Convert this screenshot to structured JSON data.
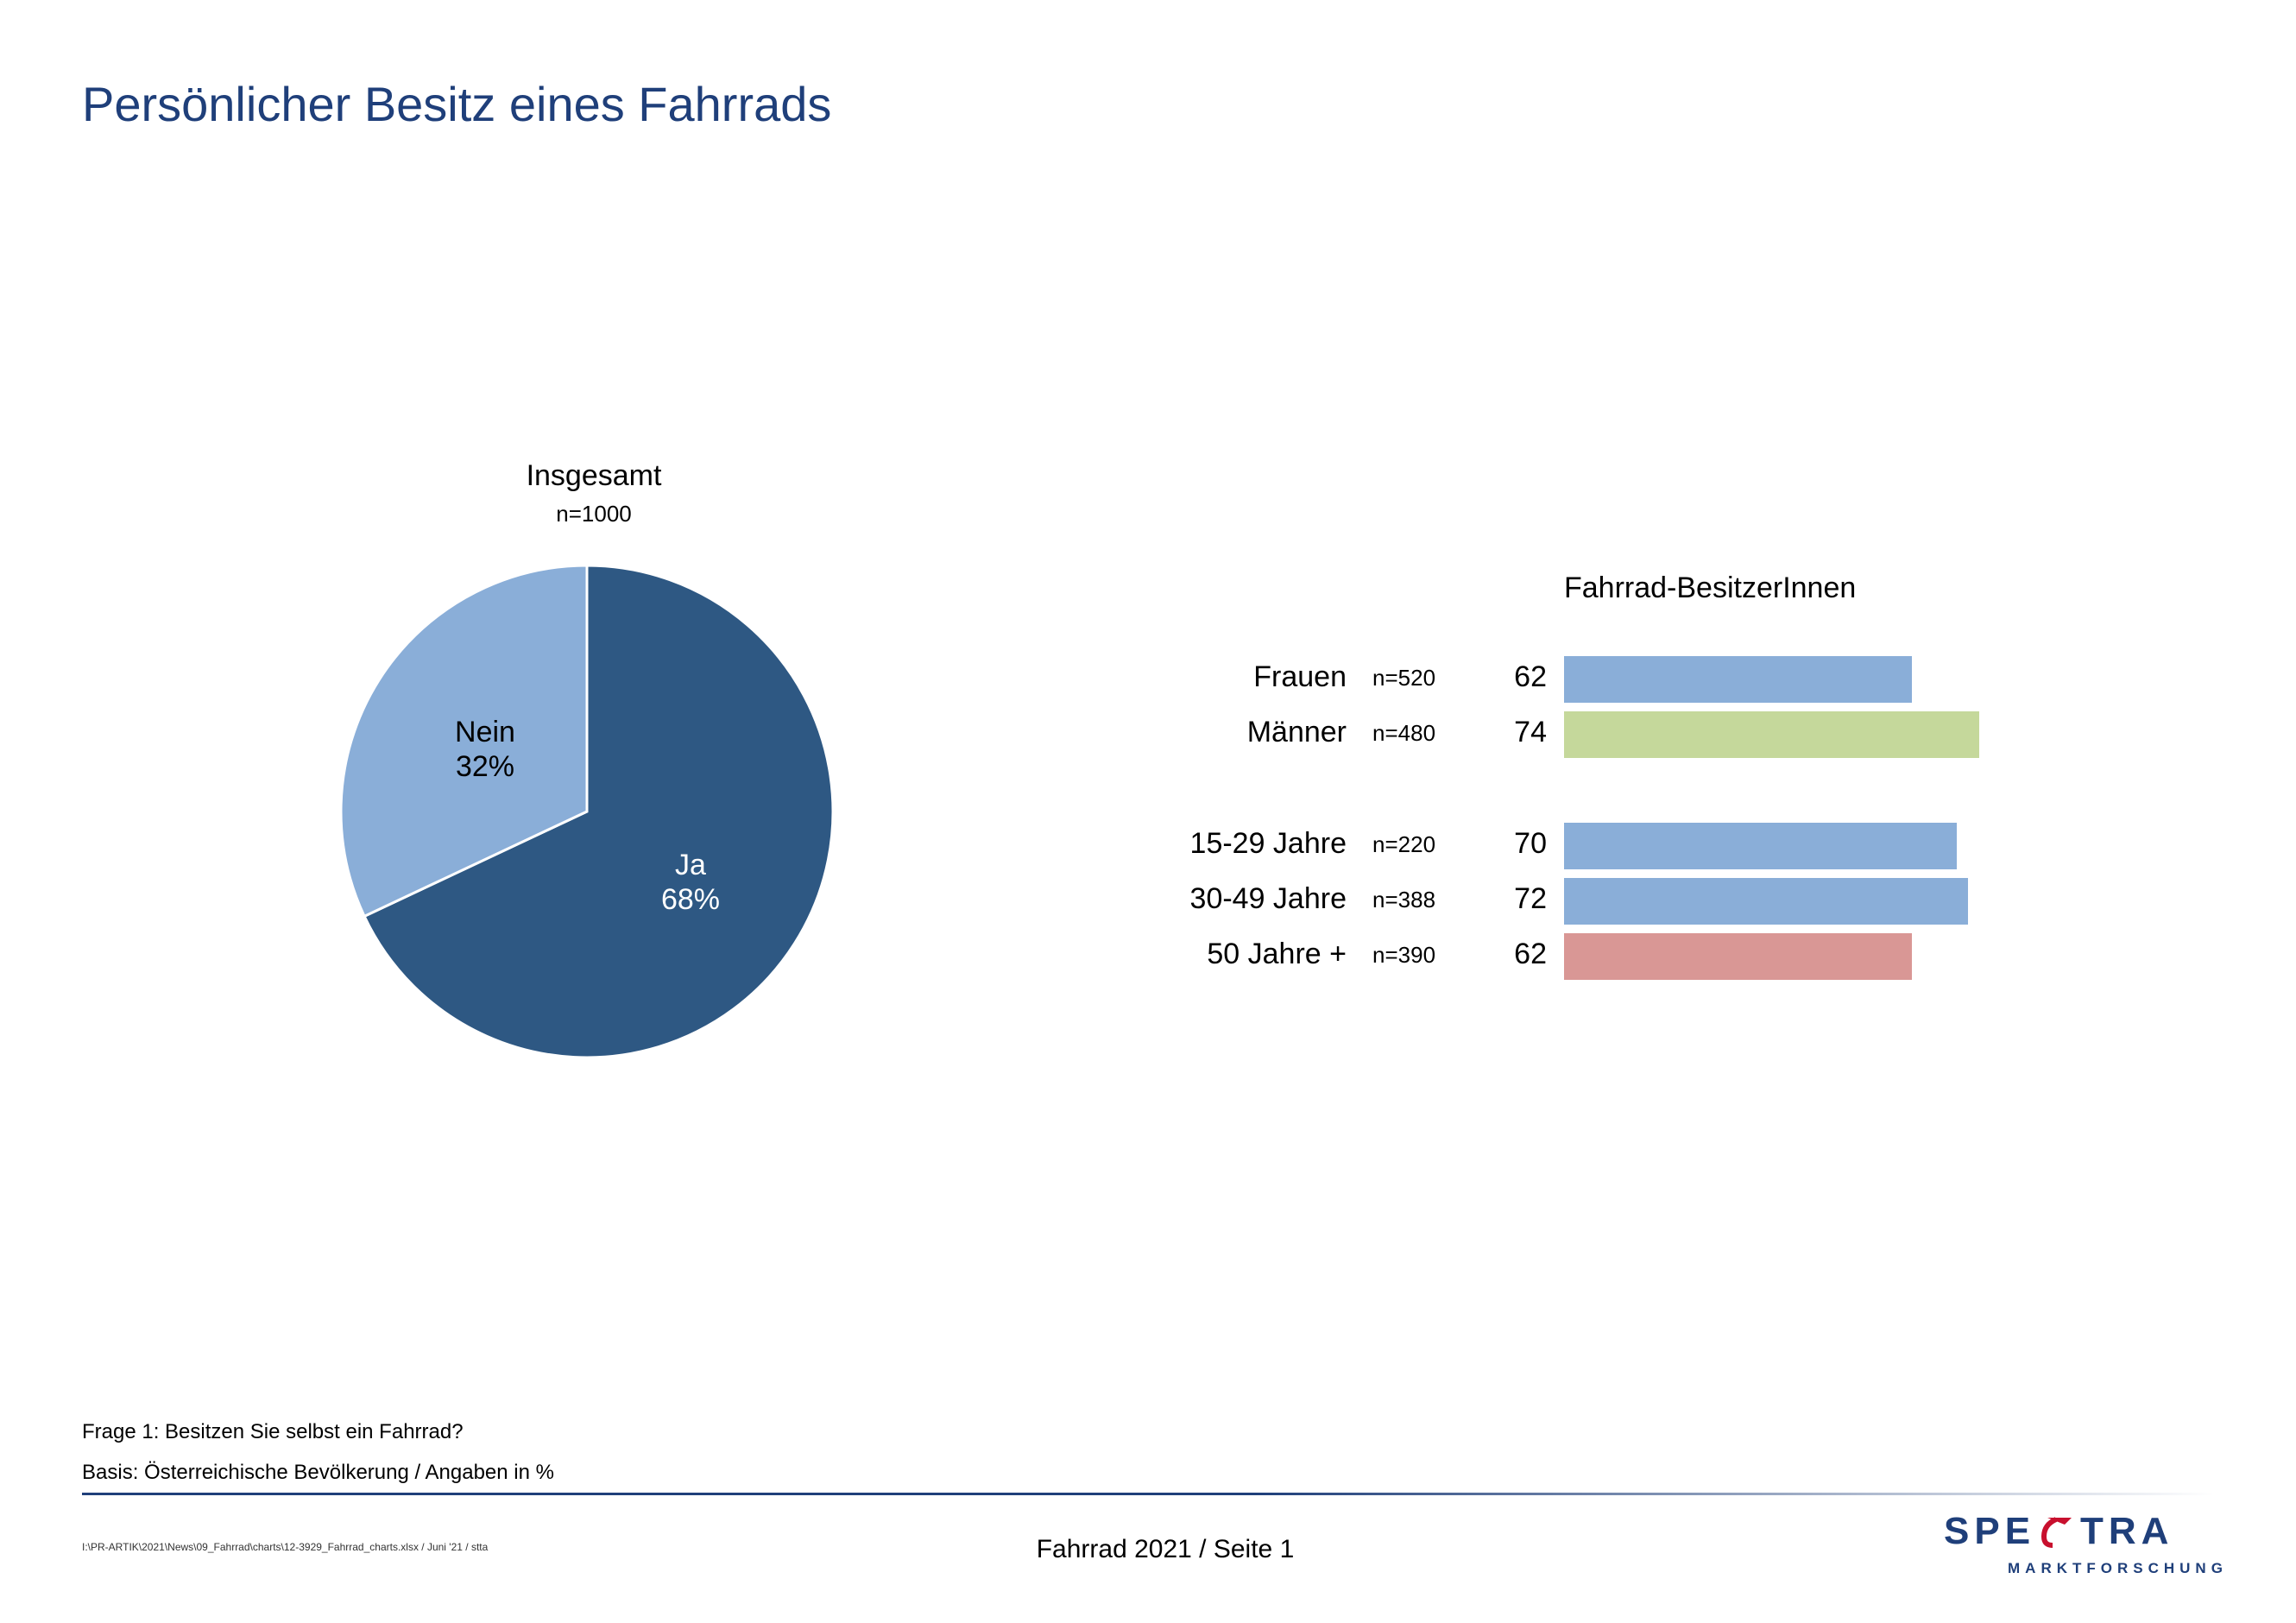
{
  "title": "Persönlicher Besitz eines Fahrrads",
  "chart_data": [
    {
      "type": "pie",
      "title": "Insgesamt",
      "subtitle": "n=1000",
      "slices": [
        {
          "label": "Ja",
          "value": 68,
          "value_label": "68%",
          "color": "#2e5883"
        },
        {
          "label": "Nein",
          "value": 32,
          "value_label": "32%",
          "color": "#8aaed8"
        }
      ]
    },
    {
      "type": "bar",
      "orientation": "horizontal",
      "title": "Fahrrad-BesitzerInnen",
      "xlim": [
        0,
        100
      ],
      "rows": [
        {
          "label": "Frauen",
          "n": "n=520",
          "value": 62,
          "color": "#8aaed8"
        },
        {
          "label": "Männer",
          "n": "n=480",
          "value": 74,
          "color": "#c5d89b"
        },
        {
          "label": "15-29 Jahre",
          "n": "n=220",
          "value": 70,
          "color": "#8aaed8"
        },
        {
          "label": "30-49 Jahre",
          "n": "n=388",
          "value": 72,
          "color": "#8aaed8"
        },
        {
          "label": "50 Jahre +",
          "n": "n=390",
          "value": 62,
          "color": "#d99795"
        }
      ]
    }
  ],
  "footnotes": {
    "question": "Frage 1: Besitzen Sie selbst ein Fahrrad?",
    "basis": "Basis: Österreichische Bevölkerung / Angaben in %"
  },
  "footer": {
    "file_path": "I:\\PR-ARTIK\\2021\\News\\09_Fahrrad\\charts\\12-3929_Fahrrad_charts.xlsx / Juni '21 / stta",
    "page": "Fahrrad 2021  /  Seite  1"
  },
  "logo": {
    "text_left": "SPE",
    "text_right": "TRA",
    "subtitle": "MARKTFORSCHUNG",
    "navy": "#1f3f7a",
    "red": "#c8102e"
  }
}
